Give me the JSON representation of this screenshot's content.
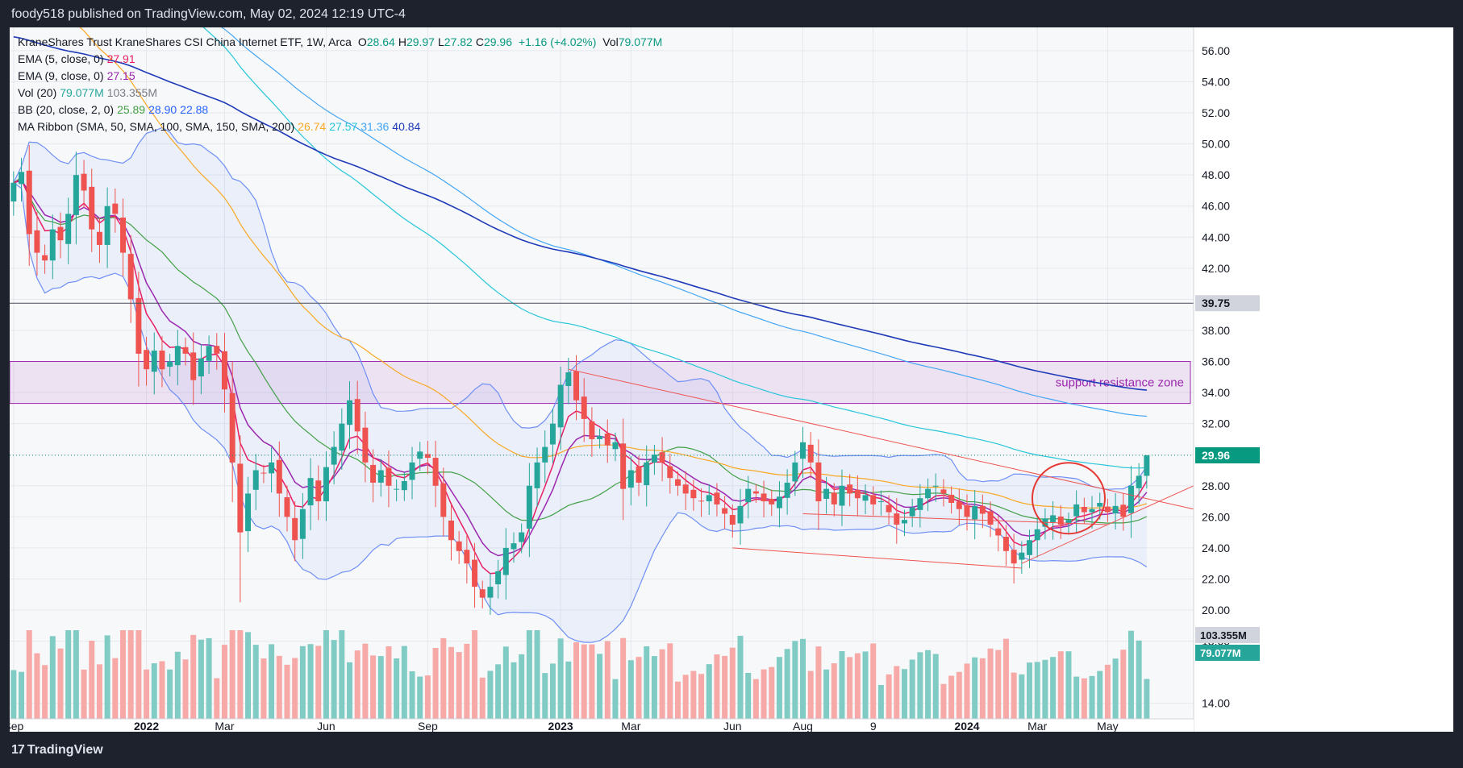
{
  "header": {
    "text": "foody518 published on TradingView.com, May 02, 2024 12:19 UTC-4"
  },
  "footer": {
    "logo_mark": "17",
    "logo_text": "TradingView"
  },
  "legend": {
    "title": "KraneShares Trust KraneShares CSI China Internet ETF, 1W, Arca",
    "ohlc": [
      {
        "k": "O",
        "v": "28.64"
      },
      {
        "k": "H",
        "v": "29.97"
      },
      {
        "k": "L",
        "v": "27.82"
      },
      {
        "k": "C",
        "v": "29.96"
      }
    ],
    "change": "+1.16 (+4.02%)",
    "vol_label": "Vol",
    "vol_value": "79.077M",
    "rows": [
      {
        "label": "EMA (5, close, 0)",
        "values": [
          {
            "text": "27.91",
            "color": "#e91e63"
          }
        ]
      },
      {
        "label": "EMA (9, close, 0)",
        "values": [
          {
            "text": "27.15",
            "color": "#9c27b0"
          }
        ]
      },
      {
        "label": "Vol (20)",
        "values": [
          {
            "text": "79.077M",
            "color": "#26a69a"
          },
          {
            "text": "103.355M",
            "color": "#787b86"
          }
        ]
      },
      {
        "label": "BB (20, close, 2, 0)",
        "values": [
          {
            "text": "25.89",
            "color": "#43a047"
          },
          {
            "text": "28.90",
            "color": "#2962ff"
          },
          {
            "text": "22.88",
            "color": "#2962ff"
          }
        ]
      },
      {
        "label": "MA Ribbon (SMA, 50, SMA, 100, SMA, 150, SMA, 200)",
        "values": [
          {
            "text": "26.74",
            "color": "#f9a825"
          },
          {
            "text": "27.57",
            "color": "#26c6da"
          },
          {
            "text": "31.36",
            "color": "#42a5f5"
          },
          {
            "text": "40.84",
            "color": "#1e3ab8"
          }
        ]
      }
    ]
  },
  "chart_data": {
    "type": "candlestick",
    "y_ticks": [
      14,
      18,
      20,
      22,
      24,
      26,
      28,
      30,
      32,
      34,
      36,
      38,
      40,
      42,
      44,
      46,
      48,
      50,
      52,
      54,
      56
    ],
    "ylim": [
      13,
      57.5
    ],
    "x_ticks": [
      {
        "label": "Sep",
        "t": 0
      },
      {
        "label": "2022",
        "t": 17
      },
      {
        "label": "Mar",
        "t": 27
      },
      {
        "label": "Jun",
        "t": 40
      },
      {
        "label": "Sep",
        "t": 53
      },
      {
        "label": "2023",
        "t": 70
      },
      {
        "label": "Mar",
        "t": 79
      },
      {
        "label": "Jun",
        "t": 92
      },
      {
        "label": "Aug",
        "t": 101
      },
      {
        "label": "9",
        "t": 110
      },
      {
        "label": "2024",
        "t": 122
      },
      {
        "label": "Mar",
        "t": 131
      },
      {
        "label": "May",
        "t": 140
      }
    ],
    "xlim": [
      -0.5,
      151
    ],
    "colors": {
      "up": "#26a69a",
      "down": "#ef5350",
      "vol_up": "#80cbc4",
      "vol_down": "#f7a9a7"
    },
    "current_price": {
      "text": "29.96",
      "value": 29.96,
      "color": "#089981"
    },
    "horizontal_line": {
      "text": "39.75",
      "value": 39.75
    },
    "zone": {
      "low": 33.3,
      "high": 36.0,
      "label": "support resistance zone",
      "color": "#9c27b0"
    },
    "volume_labels": [
      {
        "text": "103.355M",
        "color": "#787b86"
      },
      {
        "text": "79.077M",
        "color": "#26a69a"
      }
    ],
    "circle": {
      "t": 135,
      "y": 27.2
    },
    "closes": [
      47.5,
      48.2,
      44.2,
      43.0,
      42.5,
      44.5,
      43.8,
      45.5,
      48.0,
      47.0,
      44.5,
      43.5,
      46.0,
      45.5,
      43.0,
      40.0,
      36.5,
      35.5,
      36.7,
      35.5,
      36.0,
      37.0,
      36.5,
      34.8,
      36.2,
      37.0,
      36.5,
      34.2,
      29.5,
      25.0,
      27.5,
      29.0,
      28.8,
      29.5,
      27.5,
      26.0,
      24.5,
      26.5,
      28.5,
      27.0,
      29.2,
      30.5,
      32.0,
      33.5,
      31.5,
      29.5,
      28.2,
      29.0,
      28.0,
      27.8,
      28.3,
      29.5,
      30.2,
      29.8,
      28.0,
      26.0,
      24.5,
      23.8,
      23.0,
      21.5,
      20.8,
      21.5,
      22.5,
      24.0,
      24.3,
      25.0,
      28.0,
      29.5,
      30.5,
      32.0,
      34.5,
      35.3,
      33.5,
      32.3,
      31.0,
      31.2,
      30.6,
      30.8,
      27.8,
      29.0,
      28.2,
      29.5,
      30.0,
      29.5,
      28.5,
      28.0,
      27.5,
      27.2,
      27.0,
      27.4,
      26.8,
      26.2,
      25.5,
      26.7,
      27.8,
      27.5,
      27.0,
      26.8,
      27.3,
      28.2,
      29.5,
      30.8,
      29.5,
      27.0,
      27.8,
      26.8,
      28.0,
      27.5,
      27.2,
      27.4,
      26.8,
      27.0,
      26.3,
      25.5,
      25.8,
      26.6,
      27.2,
      27.8,
      28.0,
      27.5,
      26.9,
      26.5,
      26.0,
      26.7,
      26.2,
      25.5,
      24.8,
      23.8,
      23.0,
      23.7,
      24.5,
      25.2,
      25.9,
      26.1,
      25.5,
      25.8,
      26.8,
      26.3,
      26.5,
      26.9,
      26.3,
      26.7,
      26.0,
      28.0,
      28.64,
      29.96
    ]
  }
}
